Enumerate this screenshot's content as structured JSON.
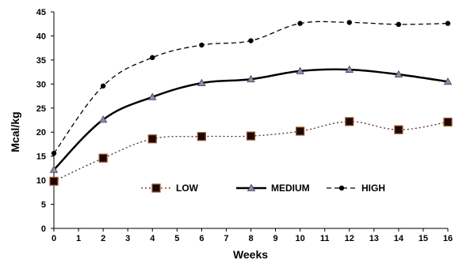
{
  "chart_data": {
    "type": "line",
    "xlabel": "Weeks",
    "ylabel": "Mcal/kg",
    "xlim": [
      0,
      16
    ],
    "ylim": [
      0,
      45
    ],
    "x_ticks": [
      "0",
      "1",
      "2",
      "3",
      "4",
      "5",
      "6",
      "7",
      "8",
      "9",
      "10",
      "11",
      "12",
      "13",
      "14",
      "15",
      "16"
    ],
    "y_ticks": [
      "0",
      "5",
      "10",
      "15",
      "20",
      "25",
      "30",
      "35",
      "40",
      "45"
    ],
    "grid": false,
    "legend_position": "lower-center",
    "series": [
      {
        "name": "LOW",
        "line_style": "dotted",
        "marker": "square",
        "color": "#5a2b1c",
        "marker_fill": "#1a0a05",
        "x": [
          0,
          2,
          4,
          6,
          8,
          10,
          12,
          14,
          16
        ],
        "values": [
          9.8,
          14.6,
          18.6,
          19.1,
          19.2,
          20.2,
          22.2,
          20.5,
          22.1
        ]
      },
      {
        "name": "MEDIUM",
        "line_style": "solid",
        "marker": "triangle",
        "color": "#000000",
        "marker_fill": "#8a8fa6",
        "x": [
          0,
          2,
          4,
          6,
          8,
          10,
          12,
          14,
          16
        ],
        "values": [
          12.2,
          22.6,
          27.3,
          30.2,
          31.0,
          32.7,
          33.0,
          32.0,
          30.5
        ]
      },
      {
        "name": "HIGH",
        "line_style": "dashed",
        "marker": "circle",
        "color": "#000000",
        "marker_fill": "#000000",
        "x": [
          0,
          2,
          4,
          6,
          8,
          10,
          12,
          14,
          16
        ],
        "values": [
          15.6,
          29.6,
          35.5,
          38.1,
          39.0,
          42.6,
          42.8,
          42.4,
          42.6
        ]
      }
    ]
  }
}
